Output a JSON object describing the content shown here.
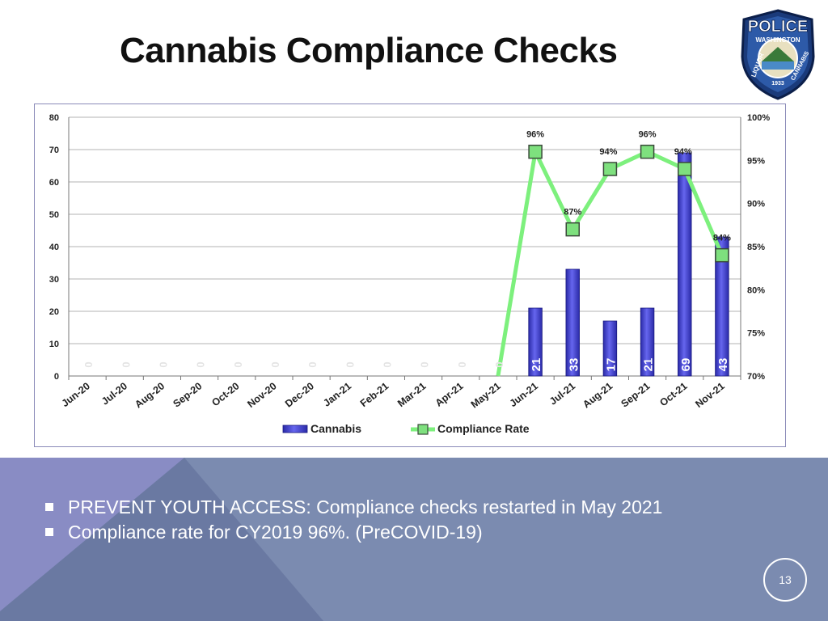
{
  "slide": {
    "title": "Cannabis Compliance Checks",
    "page_number": "13",
    "bullets": [
      "PREVENT YOUTH ACCESS: Compliance checks restarted in May 2021",
      "Compliance rate for CY2019  96%. (PreCOVID-19)"
    ]
  },
  "badge": {
    "top_word": "POLICE",
    "state": "WASHINGTON",
    "left_word": "LIQUOR",
    "right_word": "CANNABIS",
    "year": "1933"
  },
  "colors": {
    "bar": "#6666ee",
    "bar_dark": "#2a2aa8",
    "line": "#7df07d",
    "marker": "#7ee07e",
    "band": "#7b8bb0",
    "band_light": "#8c8cc8",
    "band_dark": "#5c6c98"
  },
  "chart_data": {
    "type": "bar",
    "title": "",
    "categories": [
      "Jun-20",
      "Jul-20",
      "Aug-20",
      "Sep-20",
      "Oct-20",
      "Nov-20",
      "Dec-20",
      "Jan-21",
      "Feb-21",
      "Mar-21",
      "Apr-21",
      "May-21",
      "Jun-21",
      "Jul-21",
      "Aug-21",
      "Sep-21",
      "Oct-21",
      "Nov-21"
    ],
    "series": [
      {
        "name": "Cannabis",
        "type": "bar",
        "axis": "left",
        "values": [
          0,
          0,
          0,
          0,
          0,
          0,
          0,
          0,
          0,
          0,
          0,
          0,
          21,
          33,
          17,
          21,
          69,
          43
        ],
        "data_labels": [
          "0",
          "0",
          "0",
          "0",
          "0",
          "0",
          "0",
          "0",
          "0",
          "0",
          "0",
          "0",
          "21",
          "33",
          "17",
          "21",
          "69",
          "43"
        ]
      },
      {
        "name": "Compliance Rate",
        "type": "line",
        "axis": "right",
        "values": [
          null,
          null,
          null,
          null,
          null,
          null,
          null,
          null,
          null,
          null,
          null,
          70,
          96,
          87,
          94,
          96,
          94,
          84
        ],
        "data_labels": [
          "",
          "",
          "",
          "",
          "",
          "",
          "",
          "",
          "",
          "",
          "",
          "",
          "96%",
          "87%",
          "94%",
          "96%",
          "94%",
          "84%"
        ]
      }
    ],
    "y_left": {
      "min": 0,
      "max": 80,
      "ticks": [
        "0",
        "10",
        "20",
        "30",
        "40",
        "50",
        "60",
        "70",
        "80"
      ]
    },
    "y_right": {
      "min": 70,
      "max": 100,
      "ticks": [
        "70%",
        "75%",
        "80%",
        "85%",
        "90%",
        "95%",
        "100%"
      ]
    },
    "grid": true,
    "legend": {
      "position": "bottom",
      "entries": [
        "Cannabis",
        "Compliance Rate"
      ]
    }
  }
}
